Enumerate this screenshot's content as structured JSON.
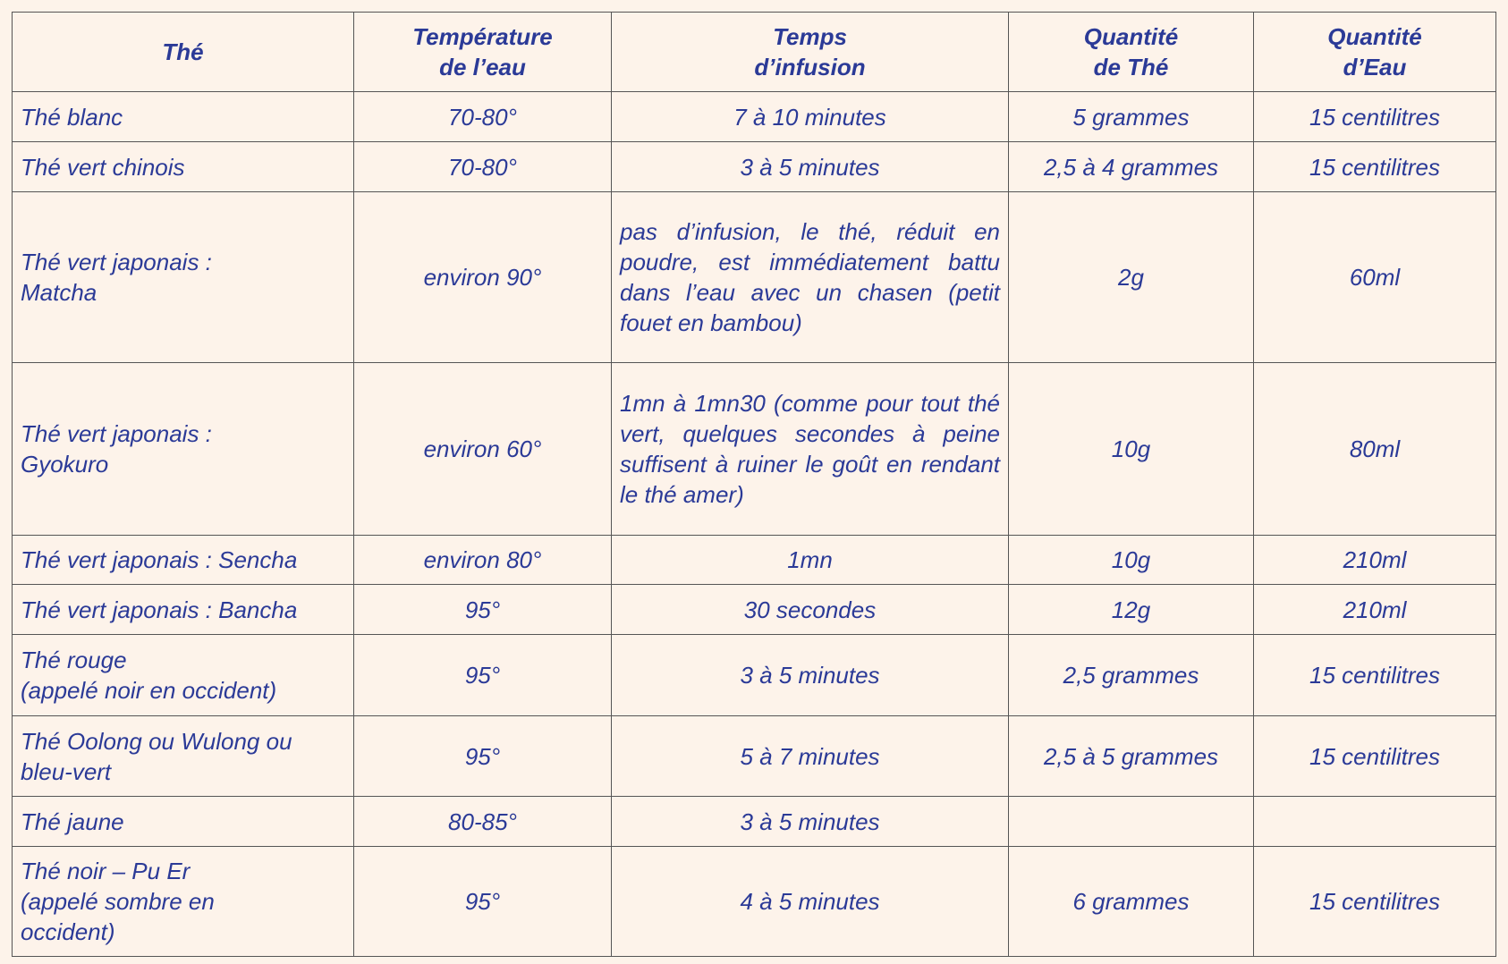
{
  "table": {
    "header": [
      "Thé",
      "Température\nde l’eau",
      "Temps\nd’infusion",
      "Quantité\nde Thé",
      "Quantité\nd’Eau"
    ],
    "rows": [
      [
        "Thé blanc",
        "70-80°",
        "7 à 10 minutes",
        "5 grammes",
        "15 centilitres"
      ],
      [
        "Thé vert chinois",
        "70-80°",
        "3 à 5 minutes",
        "2,5 à 4 grammes",
        "15 centilitres"
      ],
      [
        "Thé vert japonais :\nMatcha",
        "environ 90°",
        "pas d’infusion, le thé, réduit en poudre, est immédiatement battu dans l’eau avec un chasen (petit fouet en bambou)",
        "2g",
        "60ml"
      ],
      [
        "Thé vert japonais :\nGyokuro",
        "environ 60°",
        "1mn à 1mn30 (comme pour tout thé vert, quelques secondes à peine suffisent à ruiner le goût en rendant le thé amer)",
        "10g",
        "80ml"
      ],
      [
        "Thé vert japonais : Sencha",
        "environ 80°",
        "1mn",
        "10g",
        "210ml"
      ],
      [
        "Thé vert japonais : Bancha",
        "95°",
        "30 secondes",
        "12g",
        "210ml"
      ],
      [
        "Thé rouge\n(appelé noir en occident)",
        "95°",
        "3 à 5 minutes",
        "2,5 grammes",
        "15 centilitres"
      ],
      [
        "Thé Oolong ou Wulong ou\nbleu-vert",
        "95°",
        "5 à 7 minutes",
        "2,5 à 5 grammes",
        "15 centilitres"
      ],
      [
        "Thé jaune",
        "80-85°",
        "3 à 5 minutes"
      ],
      [
        "Thé noir – Pu Er\n(appelé sombre en\noccident)",
        "95°",
        "4 à 5 minutes",
        "6 grammes",
        "15 centilitres"
      ]
    ]
  }
}
